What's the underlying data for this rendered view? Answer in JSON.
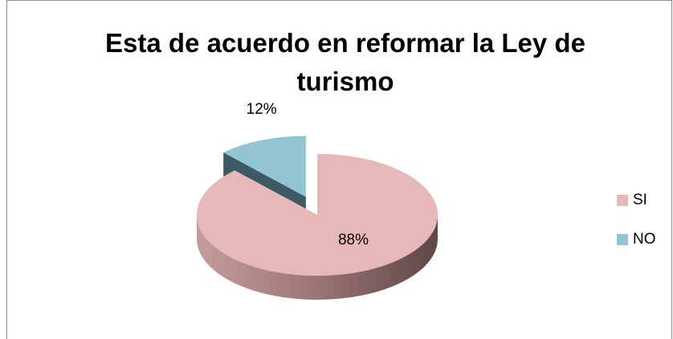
{
  "chart_data": {
    "type": "pie",
    "title": "Esta de acuerdo en reformar la Ley de turismo",
    "categories": [
      "SI",
      "NO"
    ],
    "values": [
      88,
      12
    ],
    "value_labels": [
      "88%",
      "12%"
    ],
    "colors": [
      "#e6b9b8",
      "#93c4d3"
    ],
    "legend": "right"
  }
}
